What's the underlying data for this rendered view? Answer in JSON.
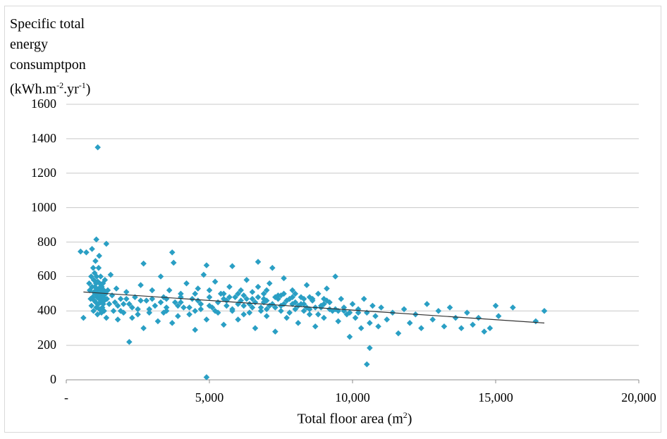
{
  "chart_data": {
    "type": "scatter",
    "ylabel_lines": [
      "Specific total",
      "energy",
      "consumptpon"
    ],
    "ylabel_unit": {
      "pre": "(kWh.m",
      "sup1": "-2",
      "mid": ".yr",
      "sup2": "-1",
      "post": ")"
    },
    "xlabel": {
      "pre": "Total floor area (m",
      "sup": "2",
      "post": ")"
    },
    "xlim": [
      0,
      20000
    ],
    "ylim": [
      0,
      1600
    ],
    "yticks": [
      {
        "value": 0,
        "label": "0"
      },
      {
        "value": 200,
        "label": "200"
      },
      {
        "value": 400,
        "label": "400"
      },
      {
        "value": 600,
        "label": "600"
      },
      {
        "value": 800,
        "label": "800"
      },
      {
        "value": 1000,
        "label": "1000"
      },
      {
        "value": 1200,
        "label": "1200"
      },
      {
        "value": 1400,
        "label": "1400"
      },
      {
        "value": 1600,
        "label": "1600"
      }
    ],
    "xticks": [
      {
        "value": 0,
        "label": "-"
      },
      {
        "value": 5000,
        "label": "5,000"
      },
      {
        "value": 10000,
        "label": "10,000"
      },
      {
        "value": 15000,
        "label": "15,000"
      },
      {
        "value": 20000,
        "label": "20,000"
      }
    ],
    "grid": "horizontal",
    "marker_color": "#2a9fc4",
    "trendline": {
      "x": [
        600,
        16700
      ],
      "y": [
        510,
        330
      ],
      "color": "#333333"
    },
    "points": [
      [
        1100,
        1350
      ],
      [
        1050,
        815
      ],
      [
        1400,
        790
      ],
      [
        500,
        745
      ],
      [
        700,
        740
      ],
      [
        900,
        760
      ],
      [
        1150,
        720
      ],
      [
        3700,
        740
      ],
      [
        3750,
        680
      ],
      [
        4900,
        665
      ],
      [
        6700,
        685
      ],
      [
        5800,
        660
      ],
      [
        7200,
        650
      ],
      [
        2700,
        675
      ],
      [
        600,
        360
      ],
      [
        4900,
        15
      ],
      [
        10500,
        90
      ],
      [
        10600,
        185
      ],
      [
        2200,
        220
      ],
      [
        800,
        560
      ],
      [
        820,
        520
      ],
      [
        850,
        470
      ],
      [
        870,
        600
      ],
      [
        880,
        430
      ],
      [
        900,
        540
      ],
      [
        920,
        480
      ],
      [
        940,
        650
      ],
      [
        950,
        400
      ],
      [
        960,
        580
      ],
      [
        970,
        510
      ],
      [
        980,
        460
      ],
      [
        990,
        620
      ],
      [
        1000,
        540
      ],
      [
        1010,
        500
      ],
      [
        1020,
        690
      ],
      [
        1030,
        450
      ],
      [
        1040,
        560
      ],
      [
        1050,
        420
      ],
      [
        1060,
        600
      ],
      [
        1070,
        520
      ],
      [
        1080,
        480
      ],
      [
        1090,
        380
      ],
      [
        1100,
        570
      ],
      [
        1110,
        500
      ],
      [
        1120,
        440
      ],
      [
        1130,
        650
      ],
      [
        1140,
        530
      ],
      [
        1150,
        470
      ],
      [
        1160,
        410
      ],
      [
        1170,
        560
      ],
      [
        1180,
        500
      ],
      [
        1190,
        450
      ],
      [
        1200,
        600
      ],
      [
        1210,
        520
      ],
      [
        1220,
        480
      ],
      [
        1230,
        390
      ],
      [
        1240,
        540
      ],
      [
        1250,
        460
      ],
      [
        1260,
        420
      ],
      [
        1270,
        500
      ],
      [
        1280,
        560
      ],
      [
        1290,
        440
      ],
      [
        1300,
        480
      ],
      [
        1310,
        520
      ],
      [
        1320,
        400
      ],
      [
        1330,
        460
      ],
      [
        1350,
        580
      ],
      [
        1370,
        500
      ],
      [
        1400,
        360
      ],
      [
        1420,
        470
      ],
      [
        1450,
        520
      ],
      [
        1500,
        440
      ],
      [
        1550,
        610
      ],
      [
        1600,
        490
      ],
      [
        1650,
        400
      ],
      [
        1700,
        450
      ],
      [
        1750,
        530
      ],
      [
        1800,
        350
      ],
      [
        1900,
        470
      ],
      [
        2000,
        390
      ],
      [
        2100,
        510
      ],
      [
        2200,
        440
      ],
      [
        2300,
        360
      ],
      [
        2400,
        480
      ],
      [
        2500,
        410
      ],
      [
        2600,
        550
      ],
      [
        2700,
        300
      ],
      [
        2800,
        460
      ],
      [
        2900,
        390
      ],
      [
        3000,
        520
      ],
      [
        3100,
        430
      ],
      [
        3200,
        340
      ],
      [
        3300,
        600
      ],
      [
        3400,
        480
      ],
      [
        3500,
        400
      ],
      [
        3600,
        520
      ],
      [
        3700,
        330
      ],
      [
        3800,
        450
      ],
      [
        3900,
        370
      ],
      [
        4000,
        500
      ],
      [
        4100,
        420
      ],
      [
        4200,
        560
      ],
      [
        4300,
        380
      ],
      [
        4400,
        470
      ],
      [
        4500,
        290
      ],
      [
        4600,
        530
      ],
      [
        4700,
        410
      ],
      [
        4800,
        610
      ],
      [
        4900,
        350
      ],
      [
        5000,
        480
      ],
      [
        5100,
        420
      ],
      [
        5200,
        570
      ],
      [
        5300,
        390
      ],
      [
        5400,
        500
      ],
      [
        5500,
        320
      ],
      [
        5600,
        460
      ],
      [
        5700,
        540
      ],
      [
        5800,
        400
      ],
      [
        5900,
        480
      ],
      [
        6000,
        350
      ],
      [
        6100,
        520
      ],
      [
        6200,
        430
      ],
      [
        6300,
        580
      ],
      [
        6400,
        390
      ],
      [
        6500,
        470
      ],
      [
        6600,
        300
      ],
      [
        6700,
        540
      ],
      [
        6800,
        420
      ],
      [
        6900,
        500
      ],
      [
        7000,
        370
      ],
      [
        7100,
        560
      ],
      [
        7200,
        440
      ],
      [
        7300,
        280
      ],
      [
        7400,
        490
      ],
      [
        7500,
        400
      ],
      [
        7600,
        590
      ],
      [
        7700,
        360
      ],
      [
        7800,
        470
      ],
      [
        7900,
        520
      ],
      [
        8000,
        410
      ],
      [
        8100,
        330
      ],
      [
        8200,
        480
      ],
      [
        8300,
        440
      ],
      [
        8400,
        550
      ],
      [
        8500,
        380
      ],
      [
        8600,
        460
      ],
      [
        8700,
        310
      ],
      [
        8800,
        500
      ],
      [
        8900,
        420
      ],
      [
        9000,
        360
      ],
      [
        9100,
        530
      ],
      [
        9200,
        450
      ],
      [
        9300,
        400
      ],
      [
        9400,
        600
      ],
      [
        9500,
        340
      ],
      [
        9600,
        470
      ],
      [
        9700,
        420
      ],
      [
        9800,
        380
      ],
      [
        9900,
        250
      ],
      [
        10000,
        440
      ],
      [
        10100,
        360
      ],
      [
        10200,
        410
      ],
      [
        10300,
        300
      ],
      [
        10400,
        470
      ],
      [
        10500,
        390
      ],
      [
        10600,
        330
      ],
      [
        10700,
        430
      ],
      [
        10800,
        370
      ],
      [
        10900,
        310
      ],
      [
        11000,
        420
      ],
      [
        11200,
        350
      ],
      [
        11400,
        390
      ],
      [
        11600,
        270
      ],
      [
        11800,
        410
      ],
      [
        12000,
        330
      ],
      [
        12200,
        380
      ],
      [
        12400,
        300
      ],
      [
        12600,
        440
      ],
      [
        12800,
        350
      ],
      [
        13000,
        400
      ],
      [
        13200,
        310
      ],
      [
        13400,
        420
      ],
      [
        13600,
        360
      ],
      [
        13800,
        300
      ],
      [
        14000,
        390
      ],
      [
        14200,
        320
      ],
      [
        14400,
        360
      ],
      [
        14600,
        280
      ],
      [
        14800,
        300
      ],
      [
        15000,
        430
      ],
      [
        15100,
        370
      ],
      [
        15600,
        420
      ],
      [
        16400,
        340
      ],
      [
        16700,
        400
      ],
      [
        2000,
        440
      ],
      [
        2500,
        380
      ],
      [
        3000,
        470
      ],
      [
        3500,
        420
      ],
      [
        4000,
        450
      ],
      [
        4500,
        400
      ],
      [
        5000,
        430
      ],
      [
        5500,
        470
      ],
      [
        6000,
        440
      ],
      [
        6500,
        420
      ],
      [
        7000,
        460
      ],
      [
        7500,
        430
      ],
      [
        8000,
        450
      ],
      [
        8500,
        410
      ],
      [
        9000,
        440
      ],
      [
        9500,
        400
      ],
      [
        6200,
        380
      ],
      [
        6800,
        400
      ],
      [
        7300,
        420
      ],
      [
        7800,
        390
      ],
      [
        8300,
        400
      ],
      [
        8800,
        380
      ],
      [
        5300,
        450
      ],
      [
        5600,
        430
      ],
      [
        4300,
        420
      ],
      [
        4700,
        440
      ],
      [
        3300,
        450
      ],
      [
        2900,
        410
      ],
      [
        6300,
        470
      ],
      [
        6900,
        450
      ],
      [
        7600,
        440
      ],
      [
        8100,
        430
      ],
      [
        8700,
        420
      ],
      [
        9200,
        410
      ],
      [
        9700,
        400
      ],
      [
        10200,
        390
      ],
      [
        5800,
        410
      ],
      [
        6400,
        440
      ],
      [
        7000,
        410
      ],
      [
        7700,
        460
      ],
      [
        8200,
        440
      ],
      [
        5200,
        400
      ],
      [
        4600,
        460
      ],
      [
        3900,
        430
      ],
      [
        3400,
        390
      ],
      [
        6100,
        460
      ],
      [
        6600,
        450
      ],
      [
        7100,
        430
      ],
      [
        7400,
        470
      ],
      [
        7900,
        440
      ],
      [
        8400,
        420
      ],
      [
        8900,
        430
      ],
      [
        9400,
        410
      ],
      [
        9900,
        390
      ],
      [
        2300,
        420
      ],
      [
        2600,
        460
      ],
      [
        1800,
        430
      ],
      [
        1900,
        400
      ],
      [
        2100,
        470
      ],
      [
        6000,
        500
      ],
      [
        6500,
        510
      ],
      [
        7000,
        520
      ],
      [
        7500,
        490
      ],
      [
        8000,
        500
      ],
      [
        8500,
        480
      ],
      [
        9000,
        470
      ],
      [
        5500,
        500
      ],
      [
        5000,
        520
      ],
      [
        4500,
        500
      ],
      [
        4000,
        480
      ],
      [
        3500,
        470
      ],
      [
        6700,
        480
      ],
      [
        7300,
        480
      ],
      [
        7900,
        480
      ],
      [
        8600,
        470
      ],
      [
        9100,
        460
      ],
      [
        5700,
        480
      ],
      [
        6200,
        490
      ],
      [
        6900,
        470
      ],
      [
        7600,
        500
      ],
      [
        8300,
        470
      ]
    ]
  }
}
